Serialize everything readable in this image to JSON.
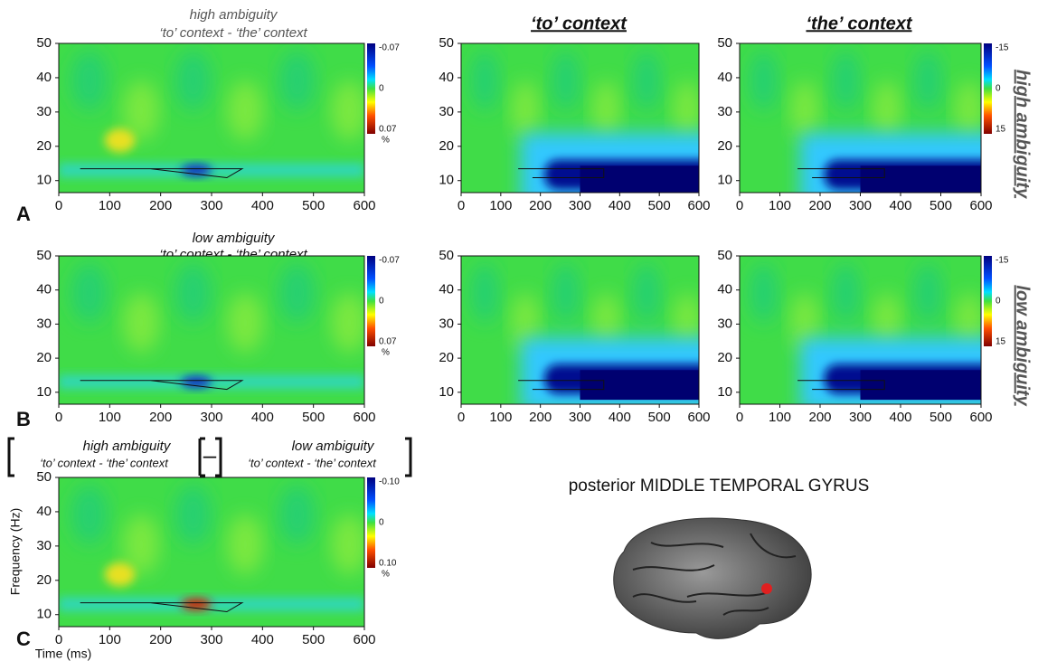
{
  "columns": [
    "‘to’ context",
    "‘the’ context"
  ],
  "rows": [
    {
      "letter": "A",
      "header": [
        "high ambiguity",
        "‘to’ context - ‘the’ context"
      ],
      "side": "high ambiguity"
    },
    {
      "letter": "B",
      "header": [
        "low ambiguity",
        "‘to’ context - ‘the’ context"
      ],
      "side": "low ambiguity"
    },
    {
      "letter": "C",
      "header": [
        "high ambiguity",
        "‘to’ context - ‘the’ context",
        "–",
        "low ambiguity",
        "‘to’ context - ‘the’ context"
      ]
    }
  ],
  "axis_titles": {
    "y": "Frequency (Hz)",
    "x": "Time (ms)"
  },
  "region": "posterior MIDDLE TEMPORAL GYRUS",
  "panels": [
    {
      "xlim": [
        0,
        600
      ],
      "ylim": [
        6.5,
        50
      ],
      "xticks": [
        0,
        100,
        200,
        300,
        400,
        500,
        600
      ],
      "yticks": [
        10,
        20,
        30,
        40,
        50
      ],
      "colorbar": [
        -0.07,
        0,
        0.07
      ],
      "unit": "%"
    },
    {
      "xlim": [
        0,
        600
      ],
      "ylim": [
        6.5,
        50
      ],
      "xticks": [
        0,
        100,
        200,
        300,
        400,
        500,
        600
      ],
      "yticks": [
        10,
        20,
        30,
        40,
        50
      ]
    },
    {
      "xlim": [
        0,
        600
      ],
      "ylim": [
        6.5,
        50
      ],
      "xticks": [
        0,
        100,
        200,
        300,
        400,
        500,
        600
      ],
      "yticks": [
        10,
        20,
        30,
        40,
        50
      ],
      "colorbar": [
        -15,
        0,
        15
      ]
    },
    {
      "xlim": [
        0,
        600
      ],
      "ylim": [
        6.5,
        50
      ],
      "xticks": [
        0,
        100,
        200,
        300,
        400,
        500,
        600
      ],
      "yticks": [
        10,
        20,
        30,
        40,
        50
      ],
      "colorbar": [
        -0.07,
        0,
        0.07
      ],
      "unit": "%"
    },
    {
      "xlim": [
        0,
        600
      ],
      "ylim": [
        6.5,
        50
      ],
      "xticks": [
        0,
        100,
        200,
        300,
        400,
        500,
        600
      ],
      "yticks": [
        10,
        20,
        30,
        40,
        50
      ]
    },
    {
      "xlim": [
        0,
        600
      ],
      "ylim": [
        6.5,
        50
      ],
      "xticks": [
        0,
        100,
        200,
        300,
        400,
        500,
        600
      ],
      "yticks": [
        10,
        20,
        30,
        40,
        50
      ],
      "colorbar": [
        -15,
        0,
        15
      ]
    },
    {
      "xlim": [
        0,
        600
      ],
      "ylim": [
        6.5,
        50
      ],
      "xticks": [
        0,
        100,
        200,
        300,
        400,
        500,
        600
      ],
      "yticks": [
        10,
        20,
        30,
        40,
        50
      ],
      "colorbar": [
        {
          "value": -0.1,
          "label": "-0.10"
        },
        0,
        {
          "value": 0.1,
          "label": "0.10"
        }
      ],
      "unit": "%"
    }
  ]
}
